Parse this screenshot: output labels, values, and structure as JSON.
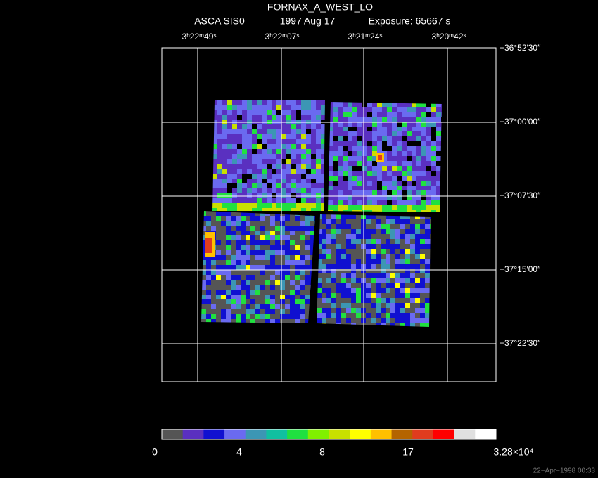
{
  "header": {
    "title": "FORNAX_A_WEST_LO",
    "instrument": "ASCA SIS0",
    "date": "1997 Aug 17",
    "exposure": "Exposure: 65667 s"
  },
  "ra_labels": [
    "3ʰ22ᵐ49ˢ",
    "3ʰ22ᵐ07ˢ",
    "3ʰ21ᵐ24ˢ",
    "3ʰ20ᵐ42ˢ"
  ],
  "dec_labels": [
    "−36°52′30″",
    "−37°00′00″",
    "−37°07′30″",
    "−37°15′00″",
    "−37°22′30″"
  ],
  "colorbar_labels": [
    "0",
    "4",
    "8",
    "17",
    "3.28×10⁴"
  ],
  "timestamp": "22−Apr−1998 00:33"
}
